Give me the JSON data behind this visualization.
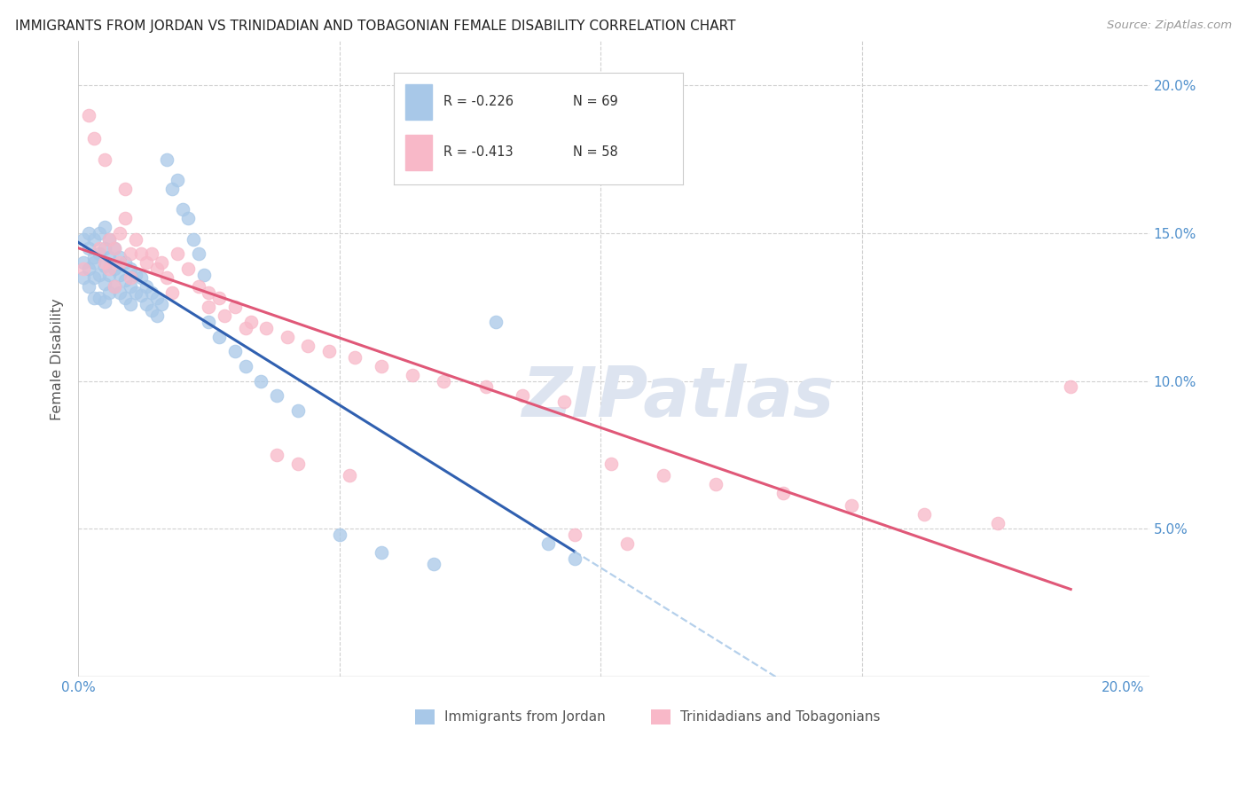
{
  "title": "IMMIGRANTS FROM JORDAN VS TRINIDADIAN AND TOBAGONIAN FEMALE DISABILITY CORRELATION CHART",
  "source": "Source: ZipAtlas.com",
  "ylabel": "Female Disability",
  "xlim": [
    0.0,
    0.205
  ],
  "ylim": [
    0.0,
    0.215
  ],
  "yticks": [
    0.05,
    0.1,
    0.15,
    0.2
  ],
  "xticks": [
    0.0,
    0.05,
    0.1,
    0.15,
    0.2
  ],
  "ytick_labels": [
    "5.0%",
    "10.0%",
    "15.0%",
    "20.0%"
  ],
  "legend_R1": "R = -0.226",
  "legend_N1": "N = 69",
  "legend_R2": "R = -0.413",
  "legend_N2": "N = 58",
  "color_blue": "#a8c8e8",
  "color_pink": "#f8b8c8",
  "color_line_blue": "#3060b0",
  "color_line_pink": "#e05878",
  "watermark": "ZIPatlas",
  "watermark_color": "#dde4f0",
  "jordan_x": [
    0.001,
    0.001,
    0.001,
    0.002,
    0.002,
    0.002,
    0.002,
    0.003,
    0.003,
    0.003,
    0.003,
    0.003,
    0.004,
    0.004,
    0.004,
    0.004,
    0.005,
    0.005,
    0.005,
    0.005,
    0.005,
    0.006,
    0.006,
    0.006,
    0.006,
    0.007,
    0.007,
    0.007,
    0.008,
    0.008,
    0.008,
    0.009,
    0.009,
    0.009,
    0.01,
    0.01,
    0.01,
    0.011,
    0.011,
    0.012,
    0.012,
    0.013,
    0.013,
    0.014,
    0.014,
    0.015,
    0.015,
    0.016,
    0.017,
    0.018,
    0.019,
    0.02,
    0.021,
    0.022,
    0.023,
    0.024,
    0.025,
    0.027,
    0.03,
    0.032,
    0.035,
    0.038,
    0.042,
    0.05,
    0.058,
    0.068,
    0.08,
    0.09,
    0.095
  ],
  "jordan_y": [
    0.14,
    0.135,
    0.148,
    0.15,
    0.138,
    0.145,
    0.132,
    0.148,
    0.14,
    0.135,
    0.128,
    0.142,
    0.15,
    0.143,
    0.136,
    0.128,
    0.152,
    0.145,
    0.139,
    0.133,
    0.127,
    0.148,
    0.142,
    0.136,
    0.13,
    0.145,
    0.138,
    0.132,
    0.142,
    0.136,
    0.13,
    0.14,
    0.134,
    0.128,
    0.138,
    0.132,
    0.126,
    0.136,
    0.13,
    0.135,
    0.129,
    0.132,
    0.126,
    0.13,
    0.124,
    0.128,
    0.122,
    0.126,
    0.175,
    0.165,
    0.168,
    0.158,
    0.155,
    0.148,
    0.143,
    0.136,
    0.12,
    0.115,
    0.11,
    0.105,
    0.1,
    0.095,
    0.09,
    0.048,
    0.042,
    0.038,
    0.12,
    0.045,
    0.04
  ],
  "trini_x": [
    0.001,
    0.002,
    0.003,
    0.004,
    0.005,
    0.005,
    0.006,
    0.006,
    0.007,
    0.007,
    0.008,
    0.008,
    0.009,
    0.009,
    0.01,
    0.01,
    0.011,
    0.012,
    0.013,
    0.014,
    0.015,
    0.016,
    0.017,
    0.018,
    0.019,
    0.021,
    0.023,
    0.025,
    0.027,
    0.03,
    0.033,
    0.036,
    0.04,
    0.044,
    0.048,
    0.053,
    0.058,
    0.064,
    0.07,
    0.078,
    0.085,
    0.093,
    0.102,
    0.112,
    0.122,
    0.135,
    0.148,
    0.162,
    0.176,
    0.19,
    0.025,
    0.028,
    0.032,
    0.038,
    0.042,
    0.052,
    0.095,
    0.105
  ],
  "trini_y": [
    0.138,
    0.19,
    0.182,
    0.145,
    0.175,
    0.14,
    0.148,
    0.138,
    0.145,
    0.132,
    0.15,
    0.14,
    0.165,
    0.155,
    0.143,
    0.135,
    0.148,
    0.143,
    0.14,
    0.143,
    0.138,
    0.14,
    0.135,
    0.13,
    0.143,
    0.138,
    0.132,
    0.13,
    0.128,
    0.125,
    0.12,
    0.118,
    0.115,
    0.112,
    0.11,
    0.108,
    0.105,
    0.102,
    0.1,
    0.098,
    0.095,
    0.093,
    0.072,
    0.068,
    0.065,
    0.062,
    0.058,
    0.055,
    0.052,
    0.098,
    0.125,
    0.122,
    0.118,
    0.075,
    0.072,
    0.068,
    0.048,
    0.045
  ]
}
